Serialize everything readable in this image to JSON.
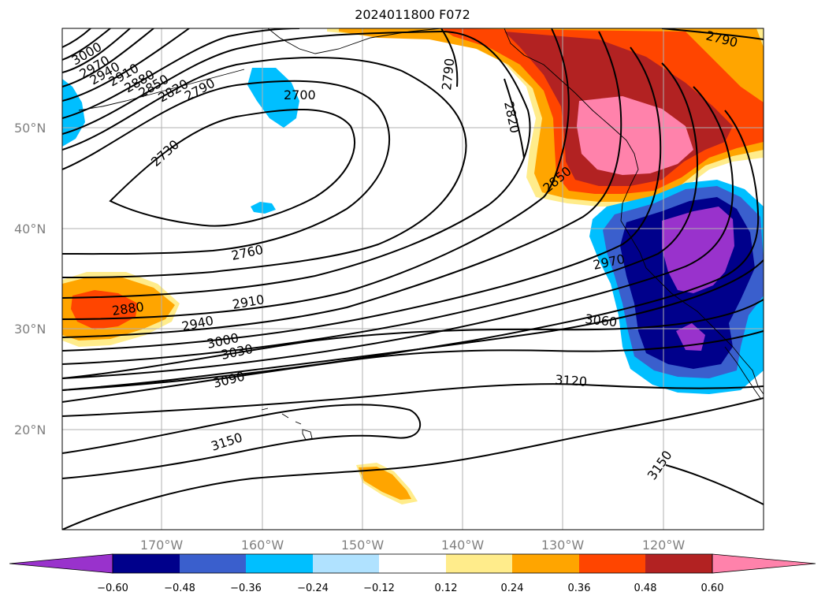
{
  "title": "2024011800 F072",
  "lat_labels": [
    "50°N",
    "40°N",
    "30°N",
    "20°N"
  ],
  "lon_labels": [
    "170°W",
    "160°W",
    "150°W",
    "140°W",
    "130°W",
    "120°W"
  ],
  "colorbar": {
    "ticks": [
      "−0.60",
      "−0.48",
      "−0.36",
      "−0.24",
      "−0.12",
      "0.12",
      "0.24",
      "0.36",
      "0.48",
      "0.60"
    ],
    "colors": [
      "#9932cc",
      "#00008b",
      "#3a5fcd",
      "#00bfff",
      "#b0e2ff",
      "#ffffff",
      "#ffec8b",
      "#ffa500",
      "#ff4500",
      "#b22222",
      "#ff82ab"
    ],
    "extend": "both"
  },
  "contour_labels": [
    "3000",
    "2970",
    "2940",
    "2910",
    "2880",
    "2850",
    "2820",
    "2790",
    "2700",
    "2730",
    "2790",
    "2820",
    "2850",
    "2790",
    "2760",
    "2880",
    "2910",
    "2940",
    "3000",
    "3030",
    "3090",
    "3150",
    "3060",
    "3120",
    "2970",
    "3150"
  ],
  "contour_line_color": "#000000"
}
